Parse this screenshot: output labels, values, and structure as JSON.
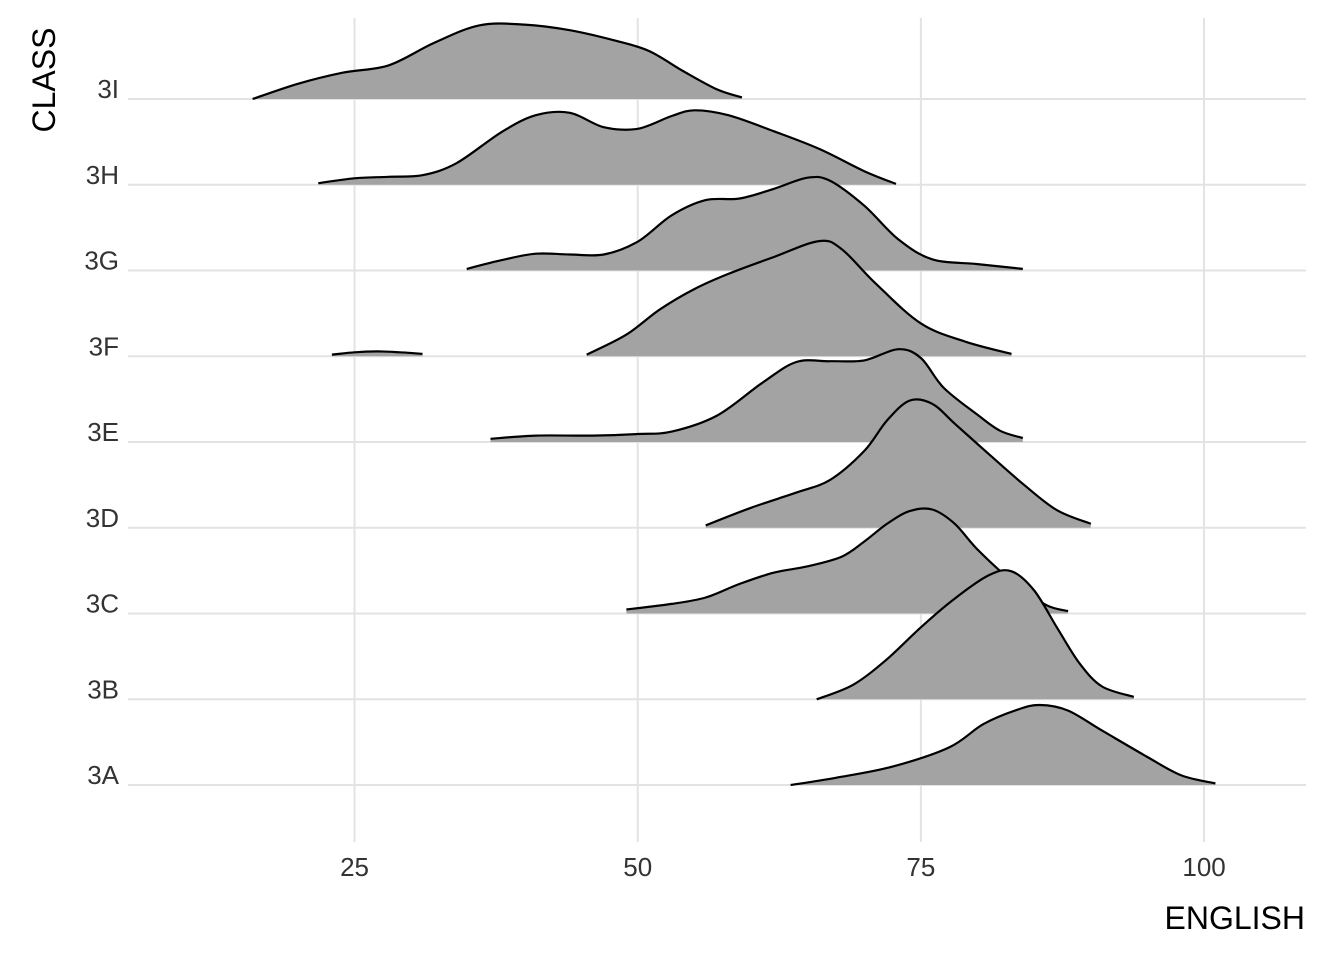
{
  "chart_data": {
    "type": "ridgeline",
    "xlabel": "ENGLISH",
    "ylabel": "CLASS",
    "xlim": [
      5.0,
      109.0
    ],
    "xticks": [
      25,
      50,
      75,
      100
    ],
    "categories": [
      "3A",
      "3B",
      "3C",
      "3D",
      "3E",
      "3F",
      "3G",
      "3H",
      "3I"
    ],
    "grid": true,
    "legend": "none",
    "colors": {
      "fill": "#a3a3a3",
      "line": "#000000",
      "grid": "#e3e3e3",
      "background": "#ffffff"
    },
    "series": [
      {
        "name": "3A",
        "density": [
          [
            63.5,
            0.0
          ],
          [
            67.5,
            0.09
          ],
          [
            72.5,
            0.23
          ],
          [
            77.5,
            0.47
          ],
          [
            80.5,
            0.76
          ],
          [
            83.5,
            0.94
          ],
          [
            85.5,
            1.0
          ],
          [
            88.0,
            0.93
          ],
          [
            91.0,
            0.68
          ],
          [
            95.0,
            0.35
          ],
          [
            98.0,
            0.12
          ],
          [
            101.0,
            0.02
          ]
        ]
      },
      {
        "name": "3B",
        "density": [
          [
            65.8,
            0.0
          ],
          [
            69.0,
            0.18
          ],
          [
            72.0,
            0.5
          ],
          [
            75.0,
            0.9
          ],
          [
            78.0,
            1.26
          ],
          [
            81.0,
            1.55
          ],
          [
            83.0,
            1.6
          ],
          [
            85.0,
            1.36
          ],
          [
            87.0,
            0.9
          ],
          [
            89.0,
            0.45
          ],
          [
            91.0,
            0.16
          ],
          [
            93.8,
            0.03
          ]
        ]
      },
      {
        "name": "3C",
        "density": [
          [
            49.0,
            0.05
          ],
          [
            53.0,
            0.12
          ],
          [
            56.0,
            0.2
          ],
          [
            59.0,
            0.37
          ],
          [
            62.0,
            0.51
          ],
          [
            65.0,
            0.59
          ],
          [
            68.0,
            0.71
          ],
          [
            70.0,
            0.9
          ],
          [
            72.0,
            1.12
          ],
          [
            74.0,
            1.28
          ],
          [
            76.0,
            1.3
          ],
          [
            78.0,
            1.12
          ],
          [
            80.0,
            0.8
          ],
          [
            83.0,
            0.41
          ],
          [
            86.0,
            0.11
          ],
          [
            88.0,
            0.03
          ]
        ]
      },
      {
        "name": "3D",
        "density": [
          [
            56.0,
            0.03
          ],
          [
            60.0,
            0.25
          ],
          [
            64.0,
            0.44
          ],
          [
            67.0,
            0.6
          ],
          [
            70.0,
            0.96
          ],
          [
            72.0,
            1.34
          ],
          [
            74.0,
            1.59
          ],
          [
            76.0,
            1.55
          ],
          [
            78.0,
            1.3
          ],
          [
            81.0,
            0.92
          ],
          [
            84.0,
            0.55
          ],
          [
            87.0,
            0.22
          ],
          [
            90.0,
            0.05
          ]
        ]
      },
      {
        "name": "3E",
        "density": [
          [
            37.0,
            0.04
          ],
          [
            41.0,
            0.08
          ],
          [
            46.0,
            0.08
          ],
          [
            50.0,
            0.1
          ],
          [
            53.0,
            0.13
          ],
          [
            57.0,
            0.33
          ],
          [
            61.0,
            0.74
          ],
          [
            64.0,
            1.0
          ],
          [
            67.0,
            1.01
          ],
          [
            70.0,
            1.02
          ],
          [
            73.0,
            1.16
          ],
          [
            75.0,
            1.05
          ],
          [
            77.0,
            0.68
          ],
          [
            80.0,
            0.34
          ],
          [
            82.0,
            0.14
          ],
          [
            84.0,
            0.05
          ]
        ]
      },
      {
        "name": "3F",
        "density": [
          [
            23.0,
            0.02
          ],
          [
            25.0,
            0.05
          ],
          [
            27.0,
            0.06
          ],
          [
            29.0,
            0.05
          ],
          [
            31.0,
            0.03
          ],
          [
            45.5,
            0.02
          ],
          [
            49.0,
            0.27
          ],
          [
            52.0,
            0.59
          ],
          [
            55.0,
            0.84
          ],
          [
            58.0,
            1.03
          ],
          [
            62.0,
            1.24
          ],
          [
            66.0,
            1.44
          ],
          [
            68.0,
            1.34
          ],
          [
            71.0,
            0.91
          ],
          [
            75.0,
            0.41
          ],
          [
            79.0,
            0.18
          ],
          [
            83.0,
            0.03
          ]
        ]
      },
      {
        "name": "3G",
        "density": [
          [
            34.9,
            0.02
          ],
          [
            38.0,
            0.13
          ],
          [
            41.0,
            0.21
          ],
          [
            44.0,
            0.2
          ],
          [
            47.0,
            0.2
          ],
          [
            50.0,
            0.36
          ],
          [
            53.0,
            0.69
          ],
          [
            56.0,
            0.88
          ],
          [
            59.0,
            0.9
          ],
          [
            62.0,
            1.02
          ],
          [
            65.0,
            1.16
          ],
          [
            67.0,
            1.12
          ],
          [
            70.0,
            0.81
          ],
          [
            73.0,
            0.39
          ],
          [
            76.0,
            0.14
          ],
          [
            80.0,
            0.08
          ],
          [
            84.0,
            0.02
          ]
        ]
      },
      {
        "name": "3H",
        "density": [
          [
            21.8,
            0.02
          ],
          [
            25.0,
            0.08
          ],
          [
            28.0,
            0.1
          ],
          [
            31.0,
            0.12
          ],
          [
            34.0,
            0.27
          ],
          [
            38.0,
            0.66
          ],
          [
            41.0,
            0.87
          ],
          [
            44.0,
            0.9
          ],
          [
            47.0,
            0.72
          ],
          [
            50.0,
            0.7
          ],
          [
            53.0,
            0.86
          ],
          [
            55.0,
            0.93
          ],
          [
            58.0,
            0.87
          ],
          [
            62.0,
            0.67
          ],
          [
            66.0,
            0.45
          ],
          [
            70.0,
            0.17
          ],
          [
            72.8,
            0.01
          ]
        ]
      },
      {
        "name": "3I",
        "density": [
          [
            16.0,
            0.0
          ],
          [
            20.0,
            0.19
          ],
          [
            24.0,
            0.33
          ],
          [
            28.0,
            0.42
          ],
          [
            32.0,
            0.7
          ],
          [
            36.0,
            0.92
          ],
          [
            40.0,
            0.93
          ],
          [
            44.0,
            0.86
          ],
          [
            48.0,
            0.73
          ],
          [
            51.0,
            0.6
          ],
          [
            54.0,
            0.35
          ],
          [
            57.0,
            0.12
          ],
          [
            59.2,
            0.02
          ]
        ]
      }
    ]
  }
}
